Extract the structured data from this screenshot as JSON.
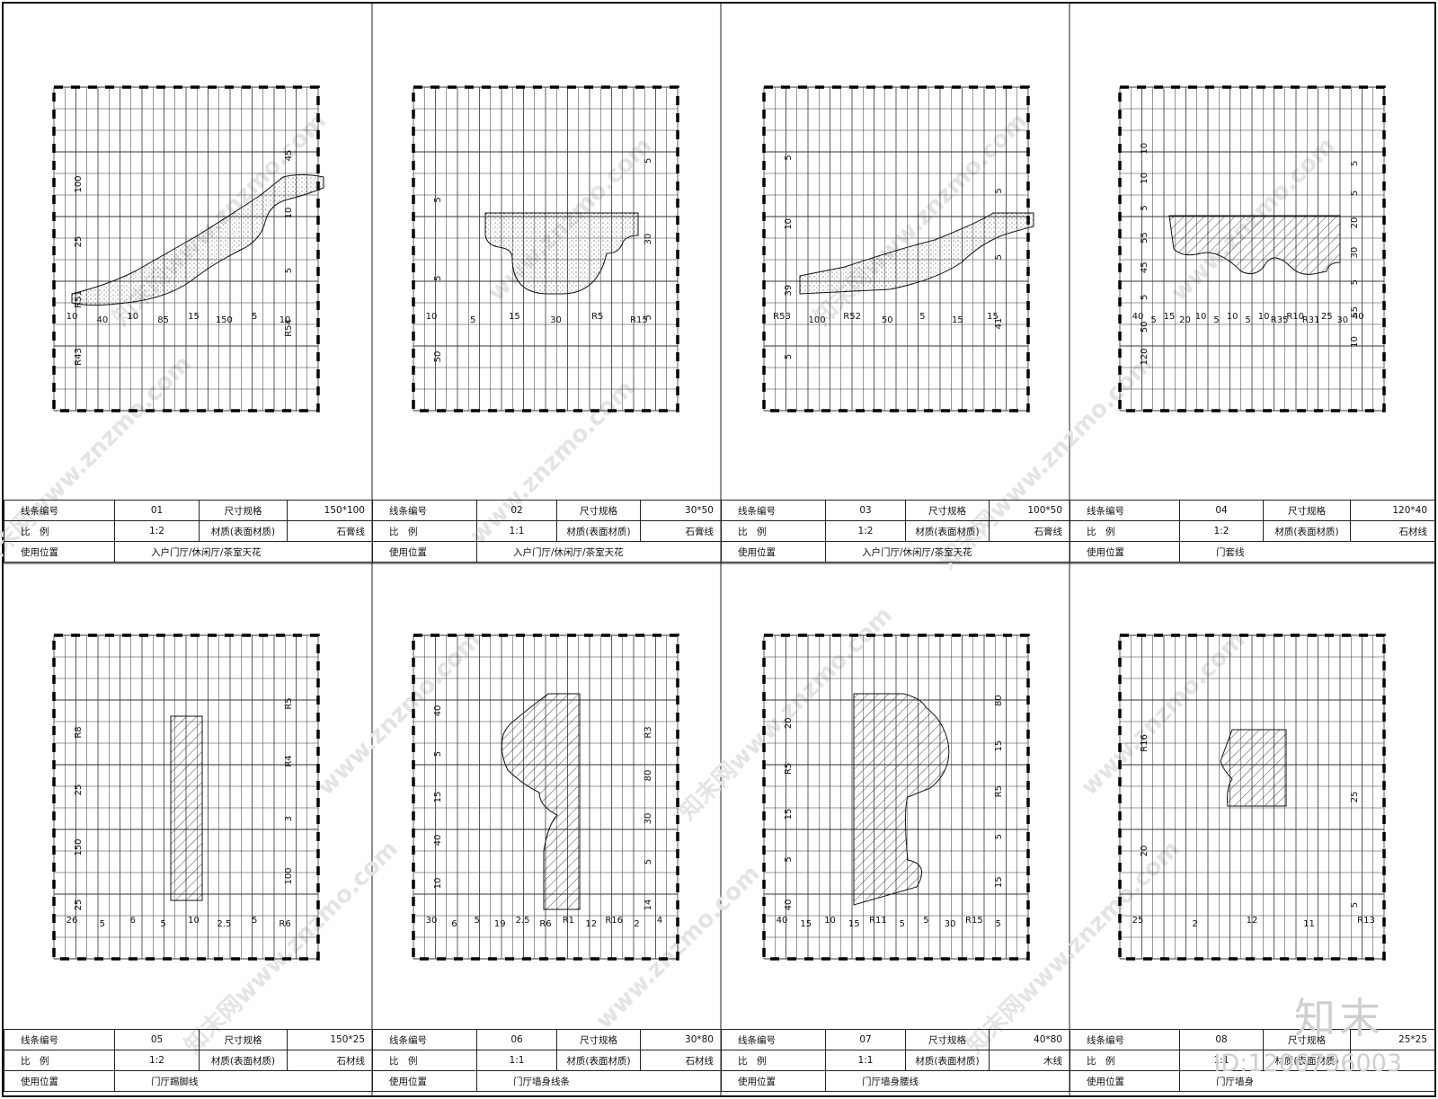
{
  "panels": [
    {
      "id": "01",
      "rows": {
        "code_label": "线条编号",
        "code": "01",
        "size_label": "尺寸规格",
        "size": "150*100",
        "scale_label": "比　例",
        "scale": "1:2",
        "mat_label": "材质(表面材质)",
        "material": "石膏线",
        "loc_label": "使用位置",
        "location": "入户门厅/休闲厅/茶室天花"
      },
      "dims": [
        "10",
        "40",
        "10",
        "85",
        "15",
        "150",
        "5",
        "10",
        "45",
        "100",
        "10",
        "25",
        "5",
        "R51",
        "R54",
        "R43"
      ]
    },
    {
      "id": "02",
      "rows": {
        "code_label": "线条编号",
        "code": "02",
        "size_label": "尺寸规格",
        "size": "30*50",
        "scale_label": "比　例",
        "scale": "1:1",
        "mat_label": "材质(表面材质)",
        "material": "石膏线",
        "loc_label": "使用位置",
        "location": "入户门厅/休闲厅/茶室天花"
      },
      "dims": [
        "10",
        "5",
        "15",
        "30",
        "R5",
        "R15",
        "5",
        "5",
        "30",
        "5",
        "5",
        "50"
      ]
    },
    {
      "id": "03",
      "rows": {
        "code_label": "线条编号",
        "code": "03",
        "size_label": "尺寸规格",
        "size": "100*50",
        "scale_label": "比　例",
        "scale": "1:2",
        "mat_label": "材质(表面材质)",
        "material": "石膏线",
        "loc_label": "使用位置",
        "location": "入户门厅/休闲厅/茶室天花"
      },
      "dims": [
        "R53",
        "100",
        "R52",
        "50",
        "5",
        "15",
        "15",
        "5",
        "5",
        "10",
        "5",
        "39",
        "41",
        "5"
      ]
    },
    {
      "id": "04",
      "rows": {
        "code_label": "线条编号",
        "code": "04",
        "size_label": "尺寸规格",
        "size": "120*40",
        "scale_label": "比　例",
        "scale": "1:2",
        "mat_label": "材质(表面材质)",
        "material": "石材线",
        "loc_label": "使用位置",
        "location": "门套线"
      },
      "dims": [
        "40",
        "5",
        "15",
        "20",
        "10",
        "5",
        "10",
        "5",
        "10",
        "R35",
        "R10",
        "R31",
        "25",
        "30",
        "40",
        "10",
        "5",
        "10",
        "5",
        "5",
        "20",
        "55",
        "30",
        "45",
        "5",
        "5",
        "55",
        "50",
        "10",
        "120"
      ]
    },
    {
      "id": "05",
      "rows": {
        "code_label": "线条编号",
        "code": "05",
        "size_label": "尺寸规格",
        "size": "150*25",
        "scale_label": "比　例",
        "scale": "1:2",
        "mat_label": "材质(表面材质)",
        "material": "石材线",
        "loc_label": "使用位置",
        "location": "门厅踢脚线"
      },
      "dims": [
        "26",
        "5",
        "6",
        "5",
        "10",
        "2.5",
        "5",
        "R6",
        "R5",
        "R8",
        "R4",
        "25",
        "3",
        "150",
        "100",
        "25"
      ]
    },
    {
      "id": "06",
      "rows": {
        "code_label": "线条编号",
        "code": "06",
        "size_label": "尺寸规格",
        "size": "30*80",
        "scale_label": "比　例",
        "scale": "1:1",
        "mat_label": "材质(表面材质)",
        "material": "石材线",
        "loc_label": "使用位置",
        "location": "门厅墙身线条"
      },
      "dims": [
        "30",
        "6",
        "5",
        "19",
        "2.5",
        "R6",
        "R1",
        "12",
        "R16",
        "2",
        "4",
        "40",
        "R3",
        "5",
        "80",
        "15",
        "30",
        "40",
        "5",
        "10",
        "14"
      ]
    },
    {
      "id": "07",
      "rows": {
        "code_label": "线条编号",
        "code": "07",
        "size_label": "尺寸规格",
        "size": "40*80",
        "scale_label": "比　例",
        "scale": "1:1",
        "mat_label": "材质(表面材质)",
        "material": "木线",
        "loc_label": "使用位置",
        "location": "门厅墙身腰线"
      },
      "dims": [
        "40",
        "15",
        "10",
        "15",
        "R11",
        "5",
        "5",
        "30",
        "R15",
        "5",
        "80",
        "20",
        "15",
        "R5",
        "R5",
        "15",
        "5",
        "5",
        "15",
        "40"
      ]
    },
    {
      "id": "08",
      "rows": {
        "code_label": "线条编号",
        "code": "08",
        "size_label": "尺寸规格",
        "size": "25*25",
        "scale_label": "比　例",
        "scale": "1:1",
        "mat_label": "材质(表面材质)",
        "material": "",
        "loc_label": "使用位置",
        "location": "门厅墙身"
      },
      "dims": [
        "25",
        "2",
        "12",
        "11",
        "R13",
        "R16",
        "25",
        "20",
        "5"
      ]
    }
  ],
  "watermarks": [
    "知末网www.znzmo.com",
    "www.znzmo.com"
  ],
  "logo": "知末",
  "image_id": "ID:1206736003"
}
